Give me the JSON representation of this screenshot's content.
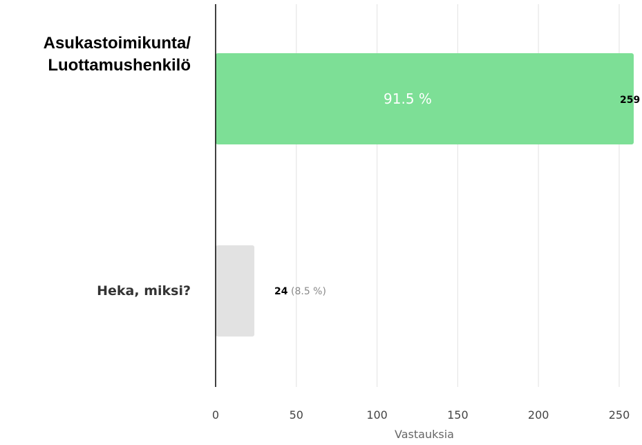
{
  "chart_data": {
    "type": "bar",
    "orientation": "horizontal",
    "categories": [
      "Asukastoimikunta/\nLuottamushenkilö",
      "Heka, miksi?"
    ],
    "values": [
      259,
      24
    ],
    "percent_labels": [
      "91.5 %",
      "8.5 %"
    ],
    "value_labels": [
      "259",
      "24"
    ],
    "xlabel": "Vastauksia",
    "xlim": [
      0,
      259
    ],
    "xticks": [
      0,
      50,
      100,
      150,
      200,
      250
    ],
    "grid": true,
    "bar_colors": [
      "#7ddf96",
      "#e2e2e2"
    ]
  }
}
